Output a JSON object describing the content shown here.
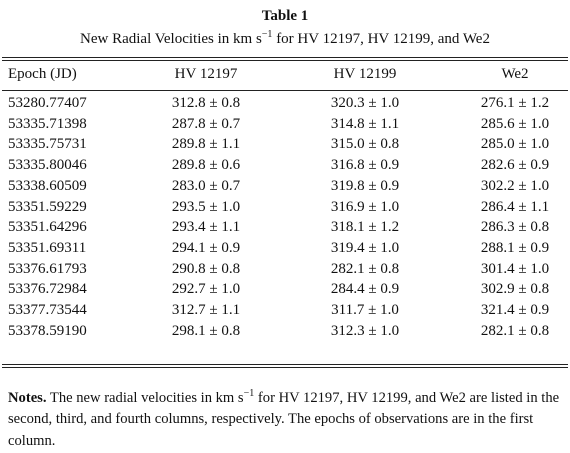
{
  "header": {
    "title": "Table 1",
    "caption": [
      "New Radial Velocities in km s",
      "−1",
      " for HV 12197, HV 12199, and We2"
    ]
  },
  "table": {
    "columns": [
      "Epoch (JD)",
      "HV 12197",
      "HV 12199",
      "We2"
    ],
    "rows": [
      [
        "53280.77407",
        "312.8 ± 0.8",
        "320.3 ± 1.0",
        "276.1 ± 1.2"
      ],
      [
        "53335.71398",
        "287.8 ± 0.7",
        "314.8 ± 1.1",
        "285.6 ± 1.0"
      ],
      [
        "53335.75731",
        "289.8 ± 1.1",
        "315.0 ± 0.8",
        "285.0 ± 1.0"
      ],
      [
        "53335.80046",
        "289.8 ± 0.6",
        "316.8 ± 0.9",
        "282.6 ± 0.9"
      ],
      [
        "53338.60509",
        "283.0 ± 0.7",
        "319.8 ± 0.9",
        "302.2 ± 1.0"
      ],
      [
        "53351.59229",
        "293.5 ± 1.0",
        "316.9 ± 1.0",
        "286.4 ± 1.1"
      ],
      [
        "53351.64296",
        "293.4 ± 1.1",
        "318.1 ± 1.2",
        "286.3 ± 0.8"
      ],
      [
        "53351.69311",
        "294.1 ± 0.9",
        "319.4 ± 1.0",
        "288.1 ± 0.9"
      ],
      [
        "53376.61793",
        "290.8 ± 0.8",
        "282.1 ± 0.8",
        "301.4 ± 1.0"
      ],
      [
        "53376.72984",
        "292.7 ± 1.0",
        "284.4 ± 0.9",
        "302.9 ± 0.8"
      ],
      [
        "53377.73544",
        "312.7 ± 1.1",
        "311.7 ± 1.0",
        "321.4 ± 0.9"
      ],
      [
        "53378.59190",
        "298.1 ± 0.8",
        "312.3 ± 1.0",
        "282.1 ± 0.8"
      ]
    ]
  },
  "notes": [
    "Notes.",
    " The new radial velocities in km s",
    "−1",
    " for HV 12197, HV 12199, and We2 are listed in the second, third, and fourth columns, respectively. The epochs of observations are in the first column."
  ]
}
